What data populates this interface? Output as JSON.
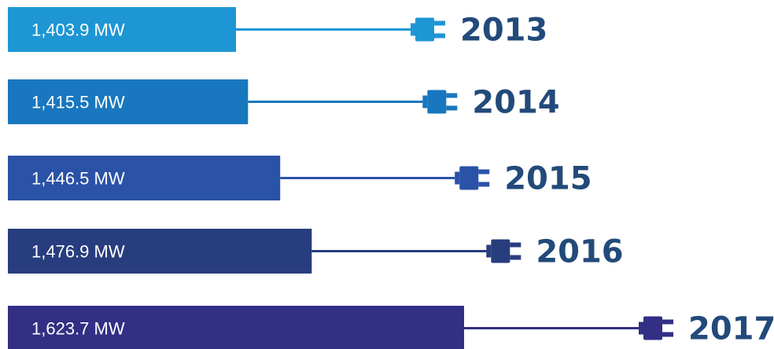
{
  "chart_data": {
    "type": "bar",
    "orientation": "horizontal",
    "categories": [
      "2013",
      "2014",
      "2015",
      "2016",
      "2017"
    ],
    "values": [
      1403.9,
      1415.5,
      1446.5,
      1476.9,
      1623.7
    ],
    "value_labels": [
      "1,403.9 MW",
      "1,415.5 MW",
      "1,446.5 MW",
      "1,476.9 MW",
      "1,623.7 MW"
    ],
    "unit": "MW",
    "colors": [
      "#1e96d4",
      "#1877be",
      "#2a52a7",
      "#283d7e",
      "#322f85"
    ],
    "year_colors": [
      "#224a7a",
      "#224a7a",
      "#224a7a",
      "#224a7a",
      "#224a7a"
    ],
    "icon": "power-plug-icon",
    "grid": false,
    "legend": "none"
  }
}
